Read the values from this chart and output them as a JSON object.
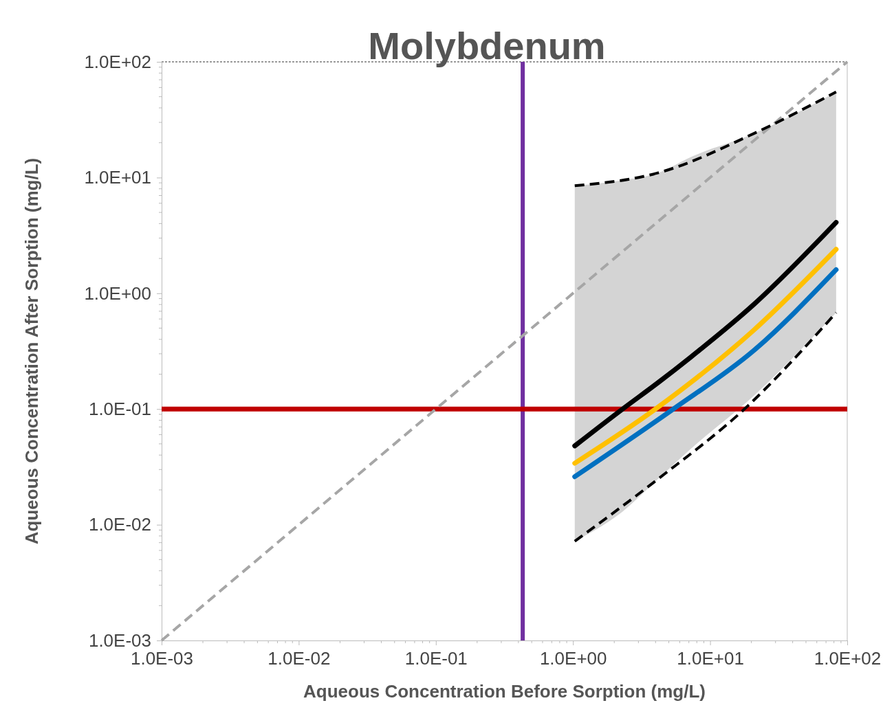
{
  "chart_data": {
    "type": "line",
    "title": "Molybdenum",
    "xlabel": "Aqueous Concentration Before Sorption (mg/L)",
    "ylabel": "Aqueous Concentration After Sorption (mg/L)",
    "log": "xy",
    "grid": false,
    "marker": "none",
    "xlim": [
      0.001,
      100
    ],
    "ylim": [
      0.001,
      100
    ],
    "xticks": [
      {
        "value": 0.001,
        "label": "1.0E-03"
      },
      {
        "value": 0.01,
        "label": "1.0E-02"
      },
      {
        "value": 0.1,
        "label": "1.0E-01"
      },
      {
        "value": 1,
        "label": "1.0E+00"
      },
      {
        "value": 10,
        "label": "1.0E+01"
      },
      {
        "value": 100,
        "label": "1.0E+02"
      }
    ],
    "yticks": [
      {
        "value": 0.001,
        "label": "1.0E-03"
      },
      {
        "value": 0.01,
        "label": "1.0E-02"
      },
      {
        "value": 0.1,
        "label": "1.0E-01"
      },
      {
        "value": 1,
        "label": "1.0E+00"
      },
      {
        "value": 10,
        "label": "1.0E+01"
      },
      {
        "value": 100,
        "label": "1.0E+02"
      }
    ],
    "series": [
      {
        "color": "#a6a6a6",
        "line_style": "dashed",
        "x": [
          0.001,
          100
        ],
        "values": [
          0.001,
          100
        ]
      },
      {
        "color": "#000000",
        "line_style": "solid",
        "x": [
          1.03,
          2.3,
          4.2,
          7.2,
          20.8,
          83
        ],
        "values": [
          0.048,
          0.1,
          0.17,
          0.28,
          0.8,
          4.1
        ],
        "lower": [
          0.0072,
          0.013,
          0.025,
          0.045,
          0.13,
          0.68
        ],
        "upper": [
          8.5,
          9.5,
          11,
          15,
          24,
          55
        ]
      },
      {
        "color": "#ffc000",
        "line_style": "solid",
        "x": [
          1.03,
          4.0,
          20.8,
          83
        ],
        "values": [
          0.034,
          0.1,
          0.48,
          2.4
        ]
      },
      {
        "color": "#0070c0",
        "line_style": "solid",
        "x": [
          1.03,
          5.4,
          20.8,
          83
        ],
        "values": [
          0.026,
          0.1,
          0.32,
          1.6
        ]
      },
      {
        "color": "#000000",
        "line_style": "dashed",
        "x": [
          1.03,
          4.2,
          20.8,
          83
        ],
        "values": [
          8.5,
          11,
          24,
          55
        ]
      },
      {
        "color": "#000000",
        "line_style": "dashed",
        "x": [
          1.03,
          4.2,
          17.8,
          83
        ],
        "values": [
          0.0072,
          0.025,
          0.1,
          0.68
        ]
      }
    ],
    "ref_lines": [
      {
        "axis": "x",
        "value": 0.43,
        "color": "#7030a0"
      },
      {
        "axis": "y",
        "value": 0.1,
        "color": "#c00000"
      }
    ]
  }
}
